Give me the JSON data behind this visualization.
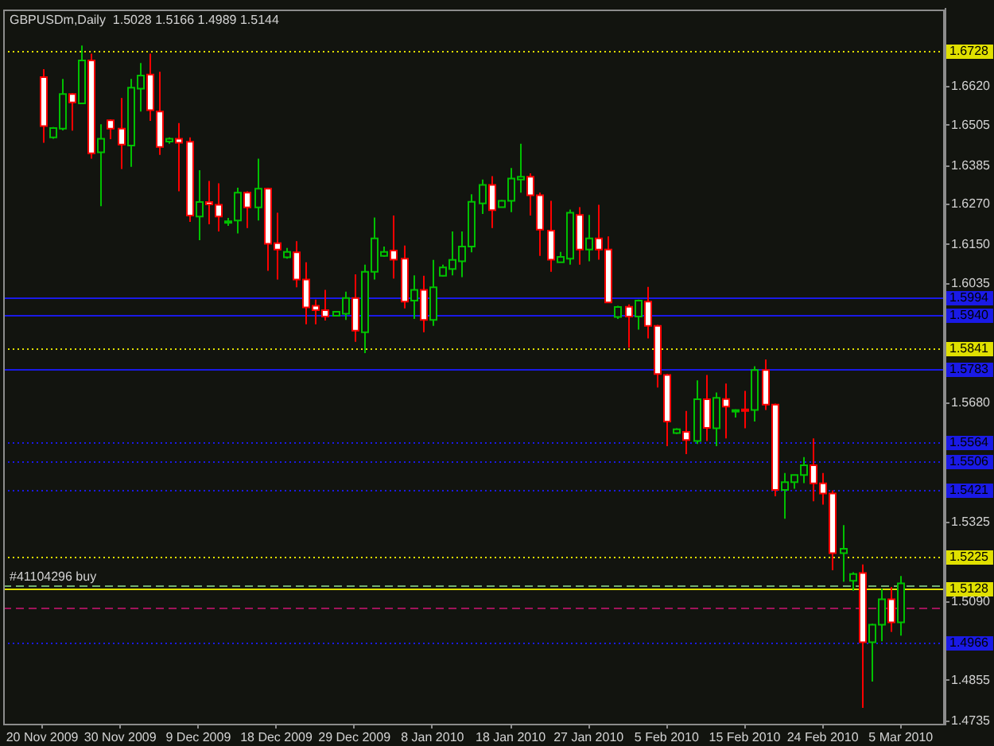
{
  "chart_data": {
    "type": "candlestick",
    "title": "GBPUSDm,Daily  1.5028 1.5166 1.4989 1.5144",
    "annotations": [
      {
        "text": "#41104296 buy",
        "y": 1.5139
      }
    ],
    "categories": [
      "20 Nov 2009",
      null,
      null,
      null,
      null,
      null,
      null,
      null,
      "30 Nov 2009",
      null,
      null,
      null,
      null,
      null,
      null,
      null,
      "9 Dec 2009",
      null,
      null,
      null,
      null,
      null,
      null,
      null,
      "18 Dec 2009",
      null,
      null,
      null,
      null,
      null,
      null,
      null,
      "29 Dec 2009",
      null,
      null,
      null,
      null,
      null,
      null,
      null,
      "8 Jan 2010",
      null,
      null,
      null,
      null,
      null,
      null,
      null,
      "18 Jan 2010",
      null,
      null,
      null,
      null,
      null,
      null,
      null,
      "27 Jan 2010",
      null,
      null,
      null,
      null,
      null,
      null,
      null,
      "5 Feb 2010",
      null,
      null,
      null,
      null,
      null,
      null,
      null,
      "15 Feb 2010",
      null,
      null,
      null,
      null,
      null,
      null,
      null,
      "24 Feb 2010",
      null,
      null,
      null,
      null,
      null,
      null,
      null,
      "5 Mar 2010"
    ],
    "ohlc": [
      [
        1.6648,
        1.6672,
        1.6453,
        1.6503
      ],
      [
        1.6469,
        1.65,
        1.6465,
        1.6497
      ],
      [
        1.6495,
        1.6643,
        1.649,
        1.6598
      ],
      [
        1.6598,
        1.6601,
        1.6489,
        1.6573
      ],
      [
        1.657,
        1.6742,
        1.6568,
        1.6698
      ],
      [
        1.6698,
        1.6718,
        1.6406,
        1.6422
      ],
      [
        1.6425,
        1.6508,
        1.6265,
        1.6465
      ],
      [
        1.652,
        1.6523,
        1.6464,
        1.6495
      ],
      [
        1.6495,
        1.6586,
        1.6375,
        1.6448
      ],
      [
        1.6445,
        1.6643,
        1.6382,
        1.6617
      ],
      [
        1.6614,
        1.669,
        1.6546,
        1.6653
      ],
      [
        1.6656,
        1.6718,
        1.6518,
        1.655
      ],
      [
        1.6546,
        1.6664,
        1.6417,
        1.6441
      ],
      [
        1.6457,
        1.6469,
        1.645,
        1.6465
      ],
      [
        1.6465,
        1.6512,
        1.6309,
        1.6453
      ],
      [
        1.6456,
        1.6469,
        1.6218,
        1.6237
      ],
      [
        1.6234,
        1.6372,
        1.6164,
        1.6277
      ],
      [
        1.6277,
        1.634,
        1.6211,
        1.627
      ],
      [
        1.6269,
        1.6333,
        1.619,
        1.6234
      ],
      [
        1.6217,
        1.623,
        1.6206,
        1.622
      ],
      [
        1.6222,
        1.632,
        1.6184,
        1.6305
      ],
      [
        1.6305,
        1.6309,
        1.62,
        1.6261
      ],
      [
        1.6261,
        1.6406,
        1.6222,
        1.6317
      ],
      [
        1.6317,
        1.632,
        1.6073,
        1.6153
      ],
      [
        1.6155,
        1.6245,
        1.6047,
        1.6136
      ],
      [
        1.6113,
        1.6141,
        1.6109,
        1.6129
      ],
      [
        1.6128,
        1.6161,
        1.6024,
        1.6047
      ],
      [
        1.6047,
        1.6098,
        1.5914,
        1.5964
      ],
      [
        1.5969,
        1.5987,
        1.5914,
        1.5956
      ],
      [
        1.5956,
        1.6016,
        1.5925,
        1.5937
      ],
      [
        1.5939,
        1.5953,
        1.5937,
        1.5951
      ],
      [
        1.5945,
        1.6011,
        1.5927,
        1.5992
      ],
      [
        1.5992,
        1.6062,
        1.5862,
        1.5895
      ],
      [
        1.589,
        1.6091,
        1.5828,
        1.607
      ],
      [
        1.607,
        1.6231,
        1.6047,
        1.6169
      ],
      [
        1.6117,
        1.6145,
        1.6115,
        1.6129
      ],
      [
        1.6133,
        1.6237,
        1.605,
        1.6106
      ],
      [
        1.6109,
        1.6148,
        1.5961,
        1.5981
      ],
      [
        1.5984,
        1.6059,
        1.593,
        1.6016
      ],
      [
        1.6016,
        1.6058,
        1.589,
        1.5927
      ],
      [
        1.5927,
        1.6105,
        1.5909,
        1.6024
      ],
      [
        1.6058,
        1.6091,
        1.6056,
        1.6083
      ],
      [
        1.6078,
        1.619,
        1.6059,
        1.6105
      ],
      [
        1.6101,
        1.619,
        1.6054,
        1.6145
      ],
      [
        1.6145,
        1.63,
        1.6128,
        1.6278
      ],
      [
        1.6273,
        1.6344,
        1.6242,
        1.6328
      ],
      [
        1.6328,
        1.6354,
        1.62,
        1.6253
      ],
      [
        1.6262,
        1.6283,
        1.6261,
        1.6281
      ],
      [
        1.6281,
        1.6378,
        1.6247,
        1.6347
      ],
      [
        1.6344,
        1.645,
        1.6305,
        1.6352
      ],
      [
        1.6352,
        1.6362,
        1.6237,
        1.6297
      ],
      [
        1.6297,
        1.6305,
        1.6117,
        1.6195
      ],
      [
        1.6192,
        1.6281,
        1.607,
        1.6106
      ],
      [
        1.6098,
        1.6129,
        1.6098,
        1.6114
      ],
      [
        1.6109,
        1.6255,
        1.6091,
        1.6245
      ],
      [
        1.6239,
        1.6262,
        1.6091,
        1.6136
      ],
      [
        1.6136,
        1.6239,
        1.6101,
        1.6169
      ],
      [
        1.6169,
        1.6269,
        1.6106,
        1.6136
      ],
      [
        1.6136,
        1.6175,
        1.5977,
        1.5979
      ],
      [
        1.5936,
        1.5969,
        1.593,
        1.5965
      ],
      [
        1.5966,
        1.5973,
        1.5844,
        1.5937
      ],
      [
        1.5937,
        1.5987,
        1.5898,
        1.5984
      ],
      [
        1.5981,
        1.6025,
        1.5872,
        1.5909
      ],
      [
        1.5909,
        1.5912,
        1.5726,
        1.5766
      ],
      [
        1.5763,
        1.5767,
        1.5552,
        1.5625
      ],
      [
        1.5591,
        1.5605,
        1.5588,
        1.5602
      ],
      [
        1.5594,
        1.5656,
        1.5528,
        1.557
      ],
      [
        1.5567,
        1.5747,
        1.5558,
        1.5691
      ],
      [
        1.5691,
        1.5763,
        1.5567,
        1.5606
      ],
      [
        1.5605,
        1.5711,
        1.5552,
        1.5695
      ],
      [
        1.5692,
        1.5738,
        1.5575,
        1.5669
      ],
      [
        1.5658,
        1.5661,
        1.5637,
        1.5659
      ],
      [
        1.5661,
        1.5716,
        1.5605,
        1.5658
      ],
      [
        1.5659,
        1.5789,
        1.5625,
        1.5778
      ],
      [
        1.5778,
        1.5809,
        1.5659,
        1.5675
      ],
      [
        1.5675,
        1.5678,
        1.5403,
        1.5422
      ],
      [
        1.5422,
        1.5472,
        1.5336,
        1.5445
      ],
      [
        1.5445,
        1.5467,
        1.5425,
        1.5466
      ],
      [
        1.5466,
        1.5519,
        1.5442,
        1.5495
      ],
      [
        1.5495,
        1.5575,
        1.5388,
        1.5441
      ],
      [
        1.5441,
        1.5472,
        1.5378,
        1.5411
      ],
      [
        1.5411,
        1.542,
        1.5183,
        1.5234
      ],
      [
        1.5234,
        1.5317,
        1.5149,
        1.5247
      ],
      [
        1.5152,
        1.5177,
        1.5122,
        1.5172
      ],
      [
        1.5175,
        1.52,
        1.4774,
        1.4969
      ],
      [
        1.4969,
        1.5024,
        1.4852,
        1.5021
      ],
      [
        1.5021,
        1.5128,
        1.4972,
        1.5097
      ],
      [
        1.5097,
        1.5133,
        1.5,
        1.5028
      ],
      [
        1.5028,
        1.5166,
        1.4989,
        1.5144
      ]
    ],
    "colors": [
      "#ff0000",
      "#00c000",
      "#00c000",
      "#ff0000",
      "#00c000",
      "#ff0000",
      "#00c000",
      "#ff0000",
      "#ff0000",
      "#00c000",
      "#00c000",
      "#ff0000",
      "#ff0000",
      "#00c000",
      "#ff0000",
      "#ff0000",
      "#00c000",
      "#ff0000",
      "#ff0000",
      "#00c000",
      "#00c000",
      "#ff0000",
      "#00c000",
      "#ff0000",
      "#ff0000",
      "#00c000",
      "#ff0000",
      "#ff0000",
      "#ff0000",
      "#ff0000",
      "#00c000",
      "#00c000",
      "#ff0000",
      "#00c000",
      "#00c000",
      "#00c000",
      "#ff0000",
      "#ff0000",
      "#00c000",
      "#ff0000",
      "#00c000",
      "#00c000",
      "#00c000",
      "#00c000",
      "#00c000",
      "#00c000",
      "#ff0000",
      "#00c000",
      "#00c000",
      "#00c000",
      "#ff0000",
      "#ff0000",
      "#ff0000",
      "#00c000",
      "#00c000",
      "#ff0000",
      "#00c000",
      "#ff0000",
      "#ff0000",
      "#00c000",
      "#ff0000",
      "#00c000",
      "#ff0000",
      "#ff0000",
      "#ff0000",
      "#00c000",
      "#ff0000",
      "#00c000",
      "#ff0000",
      "#00c000",
      "#ff0000",
      "#00c000",
      "#ff0000",
      "#00c000",
      "#ff0000",
      "#ff0000",
      "#00c000",
      "#00c000",
      "#00c000",
      "#ff0000",
      "#ff0000",
      "#ff0000",
      "#00c000",
      "#00c000",
      "#ff0000",
      "#00c000",
      "#00c000",
      "#ff0000",
      "#00c000"
    ],
    "ylim": [
      1.4727,
      1.685
    ],
    "yticks": [
      {
        "value": 1.662,
        "label": "1.6620"
      },
      {
        "value": 1.6505,
        "label": "1.6505"
      },
      {
        "value": 1.6385,
        "label": "1.6385"
      },
      {
        "value": 1.627,
        "label": "1.6270"
      },
      {
        "value": 1.615,
        "label": "1.6150"
      },
      {
        "value": 1.6035,
        "label": "1.6035"
      },
      {
        "value": 1.568,
        "label": "1.5680"
      },
      {
        "value": 1.5325,
        "label": "1.5325"
      },
      {
        "value": 1.509,
        "label": "1.5090"
      },
      {
        "value": 1.4855,
        "label": "1.4855"
      },
      {
        "value": 1.4735,
        "label": "1.4735"
      }
    ],
    "ref_lines": [
      {
        "axis": "y",
        "value": 1.6728,
        "label": "1.6728",
        "color": "#e0e000",
        "line_style": "dotted"
      },
      {
        "axis": "y",
        "value": 1.5994,
        "label": "1.5994",
        "color": "#1a1ae6",
        "line_style": "solid"
      },
      {
        "axis": "y",
        "value": 1.594,
        "label": "1.5940",
        "color": "#1a1ae6",
        "line_style": "solid"
      },
      {
        "axis": "y",
        "value": 1.5841,
        "label": "1.5841",
        "color": "#e0e000",
        "line_style": "dotted"
      },
      {
        "axis": "y",
        "value": 1.5783,
        "label": "1.5783",
        "color": "#1a1ae6",
        "line_style": "solid"
      },
      {
        "axis": "y",
        "value": 1.5564,
        "label": "1.5564",
        "color": "#1a1ae6",
        "line_style": "dotted"
      },
      {
        "axis": "y",
        "value": 1.5506,
        "label": "1.5506",
        "color": "#1a1ae6",
        "line_style": "dotted"
      },
      {
        "axis": "y",
        "value": 1.5421,
        "label": "1.5421",
        "color": "#1a1ae6",
        "line_style": "dotted"
      },
      {
        "axis": "y",
        "value": 1.5225,
        "label": "1.5225",
        "color": "#e0e000",
        "line_style": "dotted"
      },
      {
        "axis": "y",
        "value": 1.5139,
        "color": "#6fae6f",
        "line_style": "dashed"
      },
      {
        "axis": "y",
        "value": 1.5128,
        "label": "1.5128",
        "color": "#e0e000",
        "line_style": "solid"
      },
      {
        "axis": "y",
        "value": 1.5074,
        "color": "#a0145a",
        "line_style": "dashed"
      },
      {
        "axis": "y",
        "value": 1.4966,
        "label": "1.4966",
        "color": "#1a1ae6",
        "line_style": "dotted"
      }
    ]
  }
}
